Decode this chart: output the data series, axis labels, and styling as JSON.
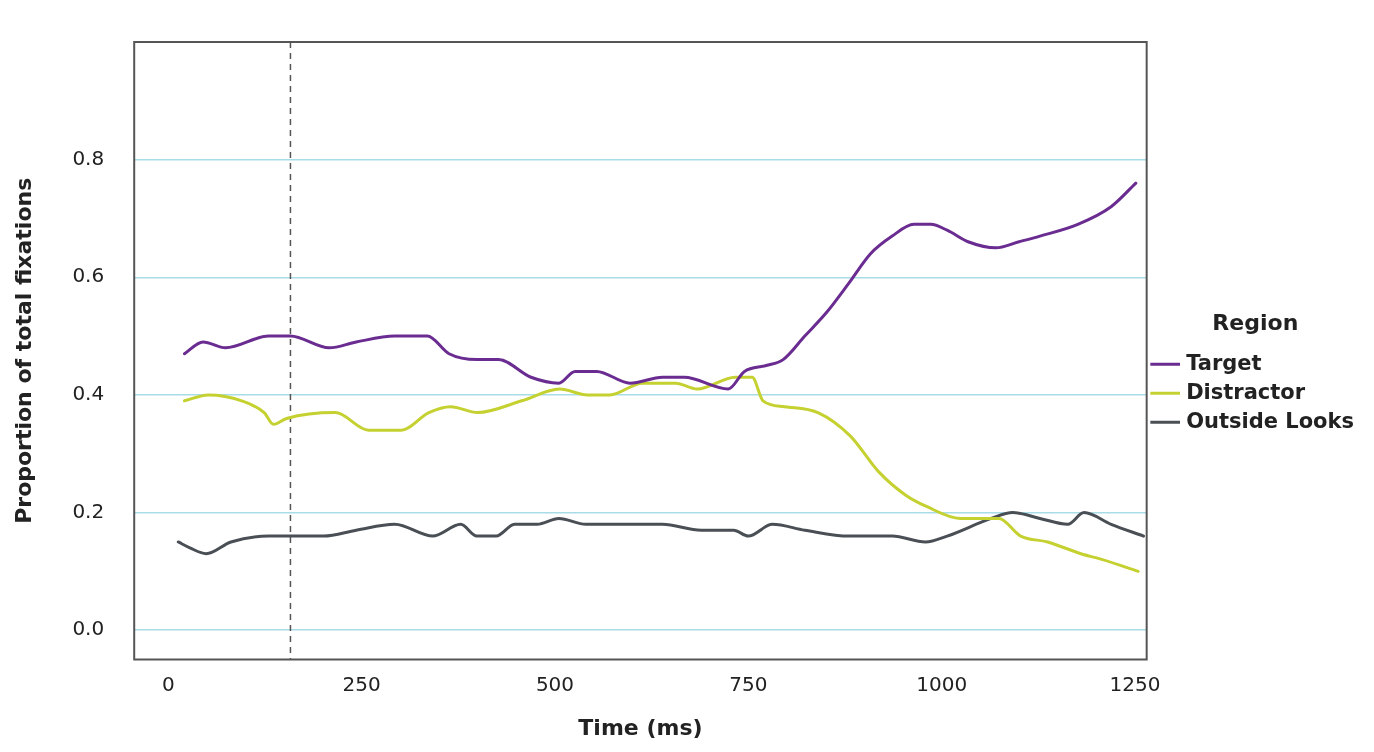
{
  "chart_data": {
    "type": "line",
    "xlabel": "Time (ms)",
    "ylabel": "Proportion of total fixations",
    "legend_title": "Region",
    "legend": "right",
    "grid": "y",
    "marker": "none",
    "line_style": "solid",
    "xlim": [
      -44,
      1265
    ],
    "xticks": [
      0,
      250,
      500,
      750,
      1000,
      1250
    ],
    "ylim": [
      -0.05,
      1.0
    ],
    "yticks": [
      {
        "value": 0,
        "label": "0.0"
      },
      {
        "value": 0.2,
        "label": "0.2"
      },
      {
        "value": 0.4,
        "label": "0.4"
      },
      {
        "value": 0.6,
        "label": "0.6"
      },
      {
        "value": 0.8,
        "label": "0.8"
      }
    ],
    "ref_lines": [
      {
        "axis": "x",
        "value": 158,
        "label": null,
        "line_style": "dashed",
        "color": "#555555"
      }
    ],
    "series": [
      {
        "name": "Target",
        "color": "#6a2c91",
        "x": [
          21,
          45,
          74,
          130,
          158,
          208,
          243,
          293,
          335,
          363,
          399,
          427,
          469,
          505,
          526,
          554,
          597,
          639,
          667,
          724,
          745,
          773,
          795,
          823,
          851,
          880,
          908,
          936,
          964,
          986,
          1007,
          1035,
          1070,
          1099,
          1127,
          1176,
          1219,
          1251
        ],
        "values": [
          0.47,
          0.49,
          0.48,
          0.5,
          0.5,
          0.48,
          0.49,
          0.5,
          0.5,
          0.47,
          0.46,
          0.46,
          0.43,
          0.42,
          0.44,
          0.44,
          0.42,
          0.43,
          0.43,
          0.41,
          0.44,
          0.45,
          0.46,
          0.5,
          0.54,
          0.59,
          0.64,
          0.67,
          0.69,
          0.69,
          0.68,
          0.66,
          0.65,
          0.66,
          0.67,
          0.69,
          0.72,
          0.76
        ]
      },
      {
        "name": "Distractor",
        "color": "#c5d130",
        "x": [
          21,
          52,
          95,
          124,
          136,
          153,
          216,
          259,
          301,
          337,
          365,
          400,
          457,
          506,
          542,
          571,
          613,
          656,
          684,
          733,
          755,
          769,
          797,
          840,
          882,
          918,
          953,
          981,
          1024,
          1045,
          1059,
          1074,
          1102,
          1137,
          1180,
          1208,
          1254
        ],
        "values": [
          0.39,
          0.4,
          0.39,
          0.37,
          0.35,
          0.36,
          0.37,
          0.34,
          0.34,
          0.37,
          0.38,
          0.37,
          0.39,
          0.41,
          0.4,
          0.4,
          0.42,
          0.42,
          0.41,
          0.43,
          0.43,
          0.39,
          0.38,
          0.37,
          0.33,
          0.27,
          0.23,
          0.21,
          0.19,
          0.19,
          0.19,
          0.19,
          0.16,
          0.15,
          0.13,
          0.12,
          0.1
        ]
      },
      {
        "name": "Outside Looks",
        "color": "#4a4f55",
        "x": [
          13,
          28,
          49,
          81,
          130,
          158,
          201,
          243,
          293,
          342,
          378,
          399,
          424,
          448,
          477,
          505,
          540,
          590,
          639,
          689,
          710,
          731,
          750,
          781,
          823,
          880,
          936,
          979,
          1007,
          1064,
          1092,
          1127,
          1163,
          1184,
          1219,
          1261
        ],
        "values": [
          0.15,
          0.14,
          0.13,
          0.15,
          0.16,
          0.16,
          0.16,
          0.17,
          0.18,
          0.16,
          0.18,
          0.16,
          0.16,
          0.18,
          0.18,
          0.19,
          0.18,
          0.18,
          0.18,
          0.17,
          0.17,
          0.17,
          0.16,
          0.18,
          0.17,
          0.16,
          0.16,
          0.15,
          0.16,
          0.19,
          0.2,
          0.19,
          0.18,
          0.2,
          0.18,
          0.16
        ]
      }
    ]
  }
}
